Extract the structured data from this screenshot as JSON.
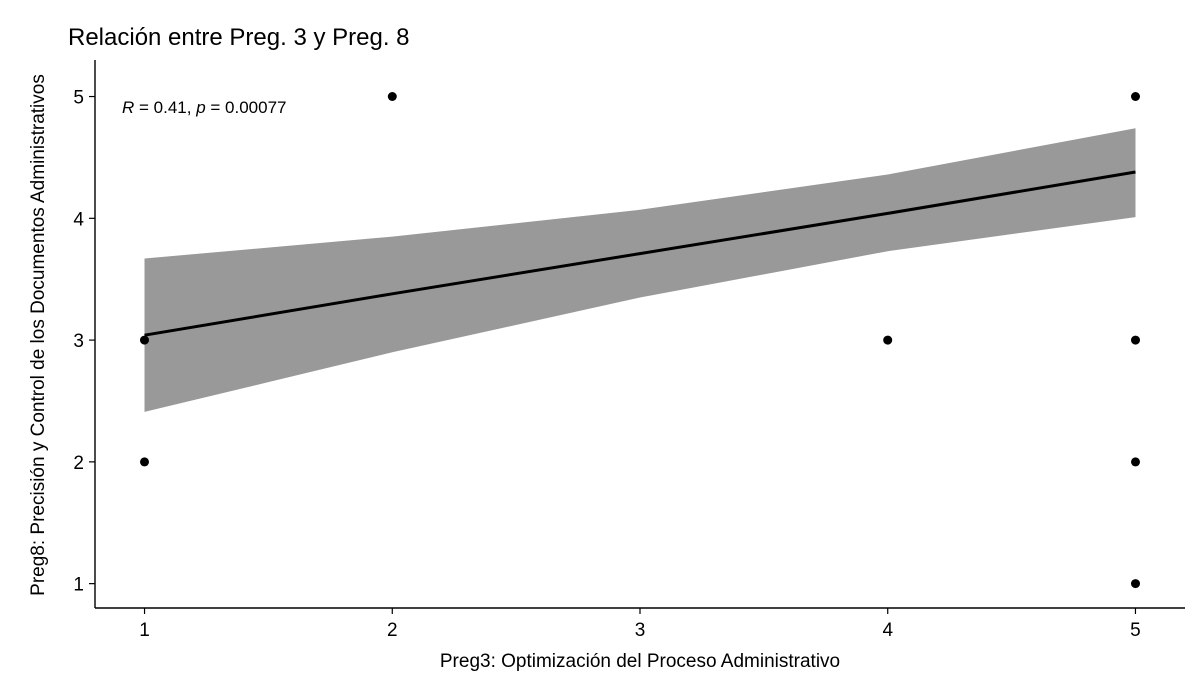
{
  "chart_data": {
    "type": "scatter",
    "title": "Relación entre Preg. 3 y Preg. 8",
    "xlabel": "Preg3: Optimización del Proceso Administrativo",
    "ylabel": "Preg8: Precisión y Control de los Documentos Administrativos",
    "xlim": [
      0.8,
      5.2
    ],
    "ylim": [
      0.8,
      5.3
    ],
    "x_ticks": [
      1,
      2,
      3,
      4,
      5
    ],
    "y_ticks": [
      1,
      2,
      3,
      4,
      5
    ],
    "grid": false,
    "points": [
      {
        "x": 1,
        "y": 3
      },
      {
        "x": 1,
        "y": 2
      },
      {
        "x": 2,
        "y": 5
      },
      {
        "x": 4,
        "y": 3
      },
      {
        "x": 5,
        "y": 5
      },
      {
        "x": 5,
        "y": 3
      },
      {
        "x": 5,
        "y": 2
      },
      {
        "x": 5,
        "y": 1
      }
    ],
    "fit_line": {
      "x": [
        1,
        2,
        3,
        4,
        5
      ],
      "y": [
        3.04,
        3.38,
        3.71,
        4.04,
        4.38
      ]
    },
    "confidence_band": {
      "x": [
        1,
        2,
        3,
        4,
        5
      ],
      "lower": [
        2.41,
        2.9,
        3.35,
        3.73,
        4.01
      ],
      "upper": [
        3.67,
        3.85,
        4.07,
        4.36,
        4.74
      ]
    },
    "annotation": {
      "r_label": "R",
      "r_value": " = 0.41, ",
      "p_label": "p",
      "p_value": " = 0.00077",
      "x": 1.0,
      "y": 4.86
    },
    "colors": {
      "points": "#000000",
      "line": "#000000",
      "band": "#999999",
      "background": "#ffffff"
    }
  }
}
